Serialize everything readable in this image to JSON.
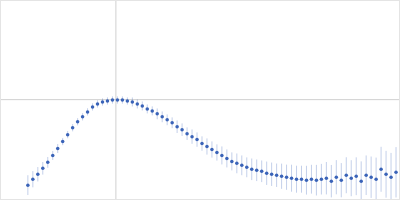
{
  "chart_data": {
    "type": "scatter",
    "marker": "circle",
    "color": "#3a63b8",
    "x": [
      0.405,
      0.48,
      0.555,
      0.63,
      0.705,
      0.78,
      0.855,
      0.93,
      1.005,
      1.08,
      1.155,
      1.23,
      1.305,
      1.38,
      1.455,
      1.53,
      1.605,
      1.68,
      1.755,
      1.83,
      1.905,
      1.98,
      2.055,
      2.13,
      2.205,
      2.28,
      2.355,
      2.43,
      2.505,
      2.58,
      2.655,
      2.73,
      2.805,
      2.88,
      2.955,
      3.03,
      3.105,
      3.18,
      3.255,
      3.33,
      3.405,
      3.48,
      3.555,
      3.63,
      3.705,
      3.78,
      3.855,
      3.93,
      4.005,
      4.08,
      4.155,
      4.23,
      4.305,
      4.38,
      4.455,
      4.53,
      4.605,
      4.68,
      4.755,
      4.83,
      4.905,
      4.98,
      5.055,
      5.13,
      5.205,
      5.28,
      5.355,
      5.43,
      5.505,
      5.58,
      5.655,
      5.73,
      5.805,
      5.88,
      5.955
    ],
    "values": [
      0.154,
      0.22,
      0.275,
      0.341,
      0.407,
      0.484,
      0.561,
      0.638,
      0.715,
      0.792,
      0.858,
      0.913,
      0.968,
      1.023,
      1.056,
      1.078,
      1.089,
      1.1,
      1.1,
      1.1,
      1.089,
      1.078,
      1.056,
      1.034,
      1.001,
      0.979,
      0.946,
      0.913,
      0.88,
      0.847,
      0.803,
      0.77,
      0.726,
      0.693,
      0.66,
      0.616,
      0.583,
      0.55,
      0.517,
      0.484,
      0.451,
      0.418,
      0.396,
      0.374,
      0.352,
      0.33,
      0.319,
      0.308,
      0.286,
      0.275,
      0.264,
      0.253,
      0.242,
      0.231,
      0.22,
      0.22,
      0.209,
      0.22,
      0.209,
      0.22,
      0.231,
      0.198,
      0.242,
      0.209,
      0.264,
      0.231,
      0.253,
      0.198,
      0.264,
      0.242,
      0.22,
      0.33,
      0.275,
      0.242,
      0.297
    ],
    "errors": [
      0.11,
      0.09,
      0.08,
      0.07,
      0.06,
      0.05,
      0.05,
      0.04,
      0.04,
      0.04,
      0.04,
      0.04,
      0.04,
      0.04,
      0.04,
      0.04,
      0.04,
      0.04,
      0.04,
      0.04,
      0.04,
      0.05,
      0.05,
      0.05,
      0.05,
      0.05,
      0.06,
      0.06,
      0.06,
      0.06,
      0.07,
      0.07,
      0.07,
      0.08,
      0.08,
      0.08,
      0.09,
      0.09,
      0.09,
      0.1,
      0.1,
      0.1,
      0.11,
      0.11,
      0.11,
      0.12,
      0.12,
      0.12,
      0.13,
      0.13,
      0.13,
      0.14,
      0.14,
      0.15,
      0.15,
      0.15,
      0.16,
      0.16,
      0.17,
      0.17,
      0.18,
      0.18,
      0.19,
      0.19,
      0.2,
      0.2,
      0.21,
      0.22,
      0.22,
      0.23,
      0.24,
      0.25,
      0.26,
      0.27,
      0.28
    ],
    "xlim": [
      0,
      6
    ],
    "ylim": [
      0,
      2.2
    ],
    "xticks": [],
    "yticks": [],
    "vlines": [
      1.732
    ],
    "hlines": [
      1.104
    ],
    "grid": false,
    "tick_labels": false
  }
}
